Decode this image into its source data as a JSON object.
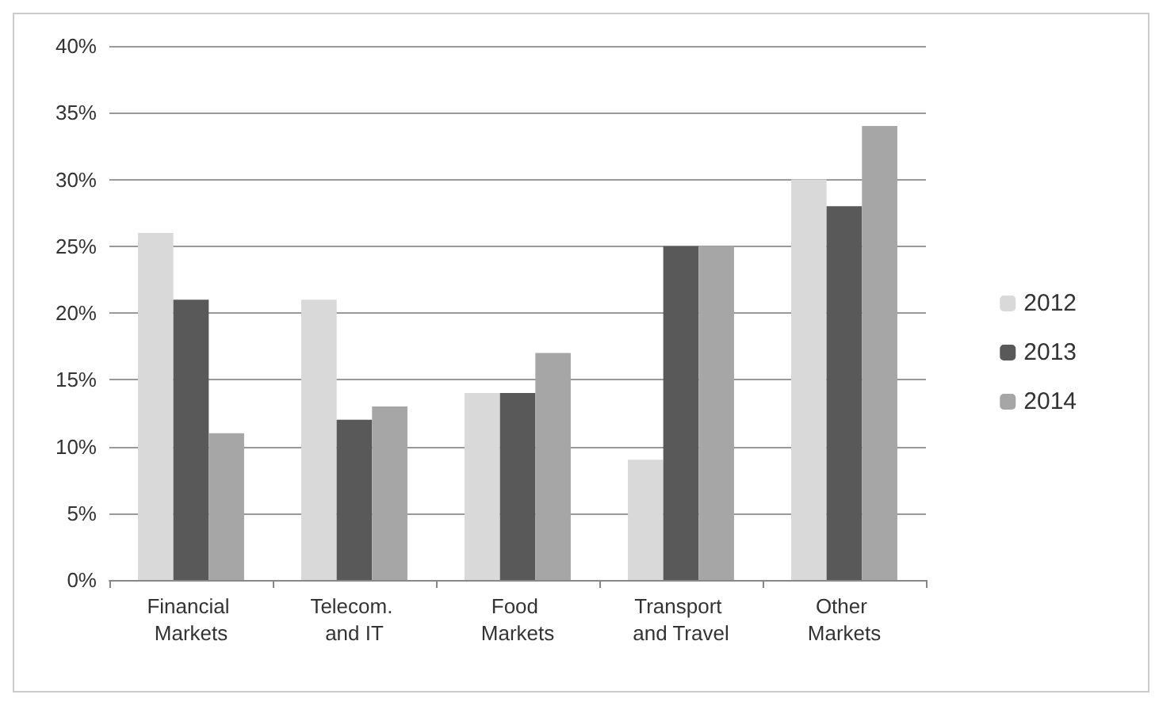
{
  "chart_data": {
    "type": "bar",
    "categories": [
      "Financial Markets",
      "Telecom. and IT",
      "Food Markets",
      "Transport and Travel",
      "Other Markets"
    ],
    "series": [
      {
        "name": "2012",
        "color": "#d9d9d9",
        "values": [
          26,
          21,
          14,
          9,
          30
        ]
      },
      {
        "name": "2013",
        "color": "#595959",
        "values": [
          21,
          12,
          14,
          25,
          28
        ]
      },
      {
        "name": "2014",
        "color": "#a6a6a6",
        "values": [
          11,
          13,
          17,
          25,
          34
        ]
      }
    ],
    "ylim": [
      0,
      40
    ],
    "yticks": [
      {
        "value": 0,
        "label": "0%"
      },
      {
        "value": 5,
        "label": "5%"
      },
      {
        "value": 10,
        "label": "10%"
      },
      {
        "value": 15,
        "label": "15%"
      },
      {
        "value": 20,
        "label": "20%"
      },
      {
        "value": 25,
        "label": "25%"
      },
      {
        "value": 30,
        "label": "30%"
      },
      {
        "value": 35,
        "label": "35%"
      },
      {
        "value": 40,
        "label": "40%"
      }
    ],
    "grid": "y",
    "legend": "right"
  }
}
